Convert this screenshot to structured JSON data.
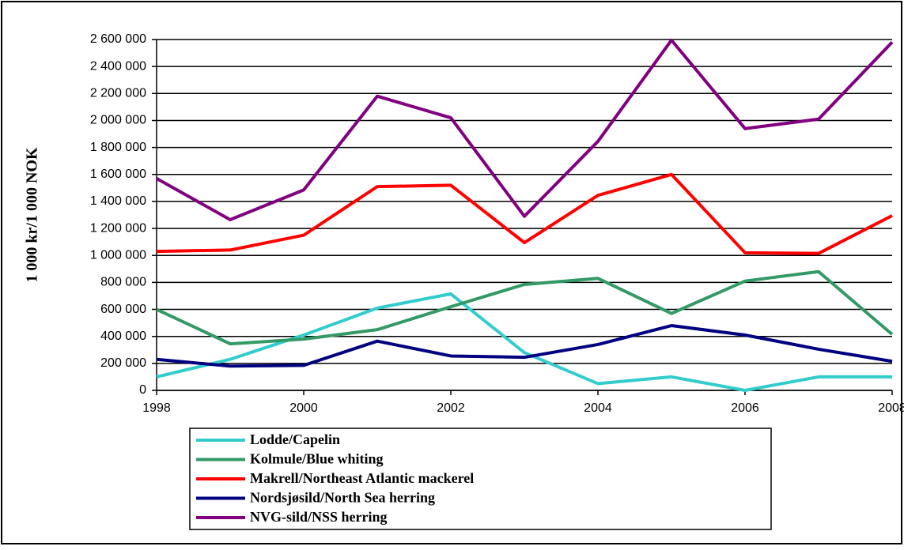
{
  "chart_data": {
    "type": "line",
    "y_label": "1 000 kr/1 000 NOK",
    "x": [
      1998,
      1999,
      2000,
      2001,
      2002,
      2003,
      2004,
      2005,
      2006,
      2007,
      2008
    ],
    "xlim": [
      1998,
      2008
    ],
    "xticks": [
      1998,
      2000,
      2002,
      2004,
      2006,
      2008
    ],
    "ylim": [
      0,
      2600000
    ],
    "yticks": [
      0,
      {
        "value": 200000,
        "label": "200 000"
      },
      {
        "value": 400000,
        "label": "400 000"
      },
      {
        "value": 600000,
        "label": "600 000"
      },
      {
        "value": 800000,
        "label": "800 000"
      },
      {
        "value": 1000000,
        "label": "1 000 000"
      },
      {
        "value": 1200000,
        "label": "1 200 000"
      },
      {
        "value": 1400000,
        "label": "1 400 000"
      },
      {
        "value": 1600000,
        "label": "1 600 000"
      },
      {
        "value": 1800000,
        "label": "1 800 000"
      },
      {
        "value": 2000000,
        "label": "2 000 000"
      },
      {
        "value": 2200000,
        "label": "2 200 000"
      },
      {
        "value": 2400000,
        "label": "2 400 000"
      },
      {
        "value": 2600000,
        "label": "2 600 000"
      }
    ],
    "grid": true,
    "legend": "bottom",
    "series": [
      {
        "name": "Lodde/Capelin",
        "color": "#33cccc",
        "values": [
          100000,
          230000,
          410000,
          610000,
          715000,
          280000,
          50000,
          100000,
          0,
          100000,
          100000
        ]
      },
      {
        "name": "Kolmule/Blue whiting",
        "color": "#339966",
        "values": [
          600000,
          345000,
          380000,
          450000,
          620000,
          785000,
          830000,
          570000,
          810000,
          880000,
          415000
        ]
      },
      {
        "name": "Makrell/Northeast Atlantic mackerel",
        "color": "#ff0000",
        "values": [
          1030000,
          1040000,
          1150000,
          1510000,
          1520000,
          1095000,
          1445000,
          1600000,
          1020000,
          1015000,
          1295000
        ]
      },
      {
        "name": "Nordsjøsild/North Sea herring",
        "color": "#000080",
        "values": [
          230000,
          180000,
          185000,
          365000,
          255000,
          245000,
          340000,
          480000,
          410000,
          305000,
          215000
        ]
      },
      {
        "name": "NVG-sild/NSS herring",
        "color": "#800080",
        "values": [
          1570000,
          1265000,
          1485000,
          2180000,
          2020000,
          1290000,
          1845000,
          2595000,
          1940000,
          2010000,
          2580000
        ]
      }
    ]
  }
}
